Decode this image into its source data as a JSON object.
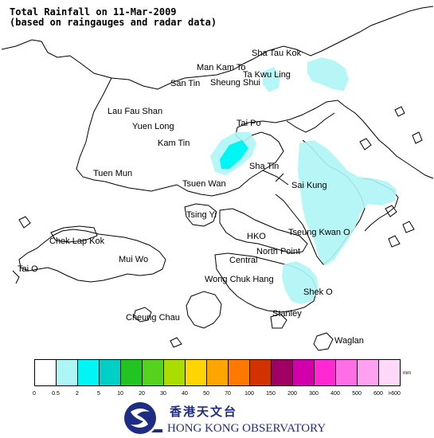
{
  "title": {
    "line1": "Total Rainfall on 11-Mar-2009",
    "line2": "(based on raingauges and radar data)"
  },
  "places": [
    {
      "name": "Sha Tau Kok"
    },
    {
      "name": "Man Kam To"
    },
    {
      "name": "Ta Kwu Ling"
    },
    {
      "name": "San Tin"
    },
    {
      "name": "Sheung Shui"
    },
    {
      "name": "Lau Fau Shan"
    },
    {
      "name": "Yuen Long"
    },
    {
      "name": "Tai Po"
    },
    {
      "name": "Kam Tin"
    },
    {
      "name": "Sha Tin"
    },
    {
      "name": "Tuen Mun"
    },
    {
      "name": "Tsuen Wan"
    },
    {
      "name": "Sai Kung"
    },
    {
      "name": "Tsing Yi"
    },
    {
      "name": "Chek Lap Kok"
    },
    {
      "name": "HKO"
    },
    {
      "name": "Tseung Kwan O"
    },
    {
      "name": "North Point"
    },
    {
      "name": "Mui Wo"
    },
    {
      "name": "Central"
    },
    {
      "name": "Tai O"
    },
    {
      "name": "Wong Chuk Hang"
    },
    {
      "name": "Shek O"
    },
    {
      "name": "Stanley"
    },
    {
      "name": "Cheung Chau"
    },
    {
      "name": "Waglan"
    }
  ],
  "legend": {
    "unit": "mm",
    "colors": [
      "#ffffff",
      "#aef5f5",
      "#00f5f5",
      "#00cfc8",
      "#22c422",
      "#55d21e",
      "#aadc00",
      "#ffd500",
      "#ffa500",
      "#ff7800",
      "#d23200",
      "#a00064",
      "#d200aa",
      "#ff28d2",
      "#ff6ee6",
      "#ffa0f0",
      "#ffd8fa"
    ],
    "ticks": [
      "0",
      "0.5",
      "2",
      "5",
      "10",
      "20",
      "30",
      "40",
      "50",
      "70",
      "100",
      "150",
      "200",
      "300",
      "400",
      "500",
      "600",
      ">600"
    ]
  },
  "logo": {
    "chinese": "香港天文台",
    "english": "HONG KONG OBSERVATORY"
  },
  "rain_areas": [
    {
      "region": "Sha Tau Kok / Ta Kwu Ling",
      "category_mm": "0.5 - 2",
      "color": "#aef5f5"
    },
    {
      "region": "Tai Po west",
      "category_mm": "2 - 5",
      "color": "#00f5f5"
    },
    {
      "region": "Sai Kung / Tseung Kwan O",
      "category_mm": "0.5 - 2",
      "color": "#aef5f5"
    },
    {
      "region": "Eastern Hong Kong Island",
      "category_mm": "0.5 - 2",
      "color": "#aef5f5"
    }
  ]
}
